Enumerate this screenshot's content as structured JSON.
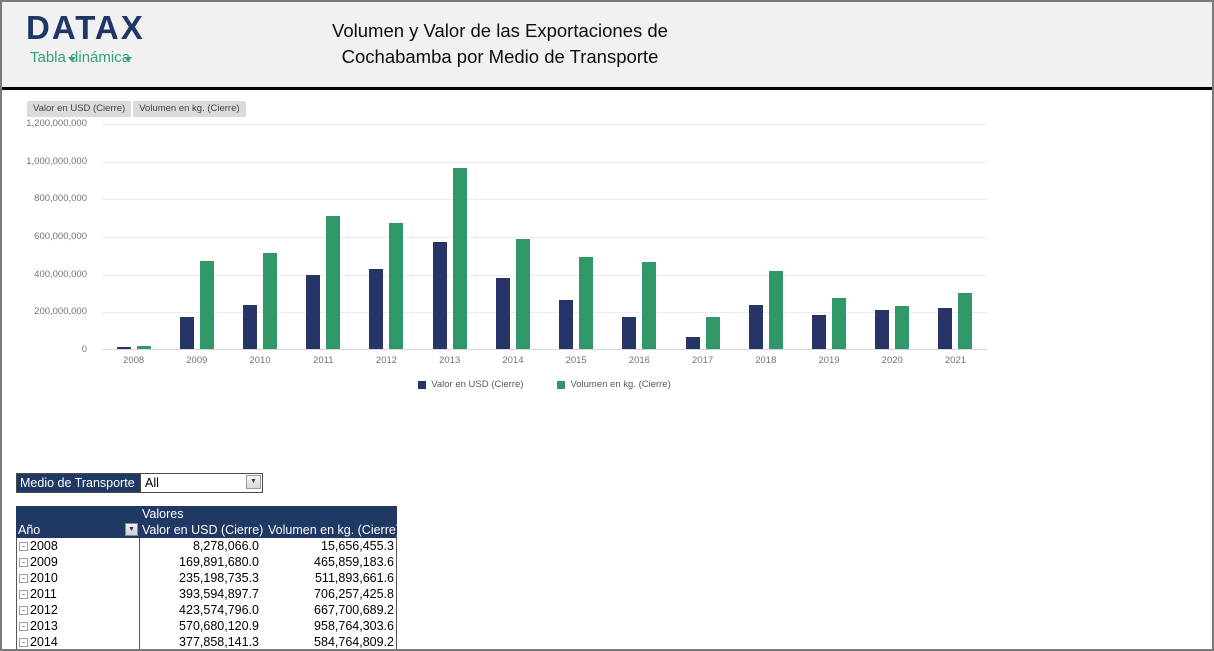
{
  "header": {
    "logo": "DATAX",
    "logo_subtitle": "Tabla dinámica",
    "title_line1": "Volumen y Valor de las Exportaciones de",
    "title_line2": "Cochabamba por Medio de Transporte"
  },
  "colors": {
    "navy_series": "#263467",
    "green_series": "#2f9768",
    "table_header": "#1f3864",
    "header_band": "#f1f1f2"
  },
  "chart": {
    "field_buttons": [
      "Valor en USD (Cierre)",
      "Volumen en kg. (Cierre)"
    ]
  },
  "chart_data": {
    "type": "bar",
    "categories": [
      "2008",
      "2009",
      "2010",
      "2011",
      "2012",
      "2013",
      "2014",
      "2015",
      "2016",
      "2017",
      "2018",
      "2019",
      "2020",
      "2021"
    ],
    "series": [
      {
        "name": "Valor en USD (Cierre)",
        "color": "#263467",
        "values": [
          8278066,
          169891680,
          235198735,
          393594898,
          423574796,
          570680121,
          377858141,
          258000000,
          168000000,
          62000000,
          235000000,
          183000000,
          205000000,
          220000000
        ]
      },
      {
        "name": "Volumen en kg. (Cierre)",
        "color": "#2f9768",
        "values": [
          15656455,
          465859184,
          511893662,
          706257426,
          667700689,
          958764304,
          584764809,
          487000000,
          460000000,
          168000000,
          415000000,
          272000000,
          228000000,
          298000000
        ]
      }
    ],
    "title": "",
    "xlabel": "",
    "ylabel": "",
    "ylim": [
      0,
      1200000000
    ],
    "ytick_labels_topdown": [
      "1,200,000,000",
      "1,000,000,000",
      "800,000,000",
      "600,000,000",
      "400,000,000",
      "200,000,000",
      "0"
    ],
    "grid": true,
    "legend_position": "bottom"
  },
  "filter": {
    "label": "Medio de Transporte",
    "value": "All",
    "dropdown_icon": "▼"
  },
  "table": {
    "group_header": "Valores",
    "columns": [
      "Año",
      "Valor en USD (Cierre)",
      "Volumen en kg. (Cierre)"
    ],
    "ano_filter_icon": "▼",
    "collapse_icon": "-",
    "rows": [
      {
        "year": "2008",
        "usd": "8,278,066.0",
        "kg": "15,656,455.3"
      },
      {
        "year": "2009",
        "usd": "169,891,680.0",
        "kg": "465,859,183.6"
      },
      {
        "year": "2010",
        "usd": "235,198,735.3",
        "kg": "511,893,661.6"
      },
      {
        "year": "2011",
        "usd": "393,594,897.7",
        "kg": "706,257,425.8"
      },
      {
        "year": "2012",
        "usd": "423,574,796.0",
        "kg": "667,700,689.2"
      },
      {
        "year": "2013",
        "usd": "570,680,120.9",
        "kg": "958,764,303.6"
      },
      {
        "year": "2014",
        "usd": "377,858,141.3",
        "kg": "584,764,809.2"
      }
    ]
  }
}
